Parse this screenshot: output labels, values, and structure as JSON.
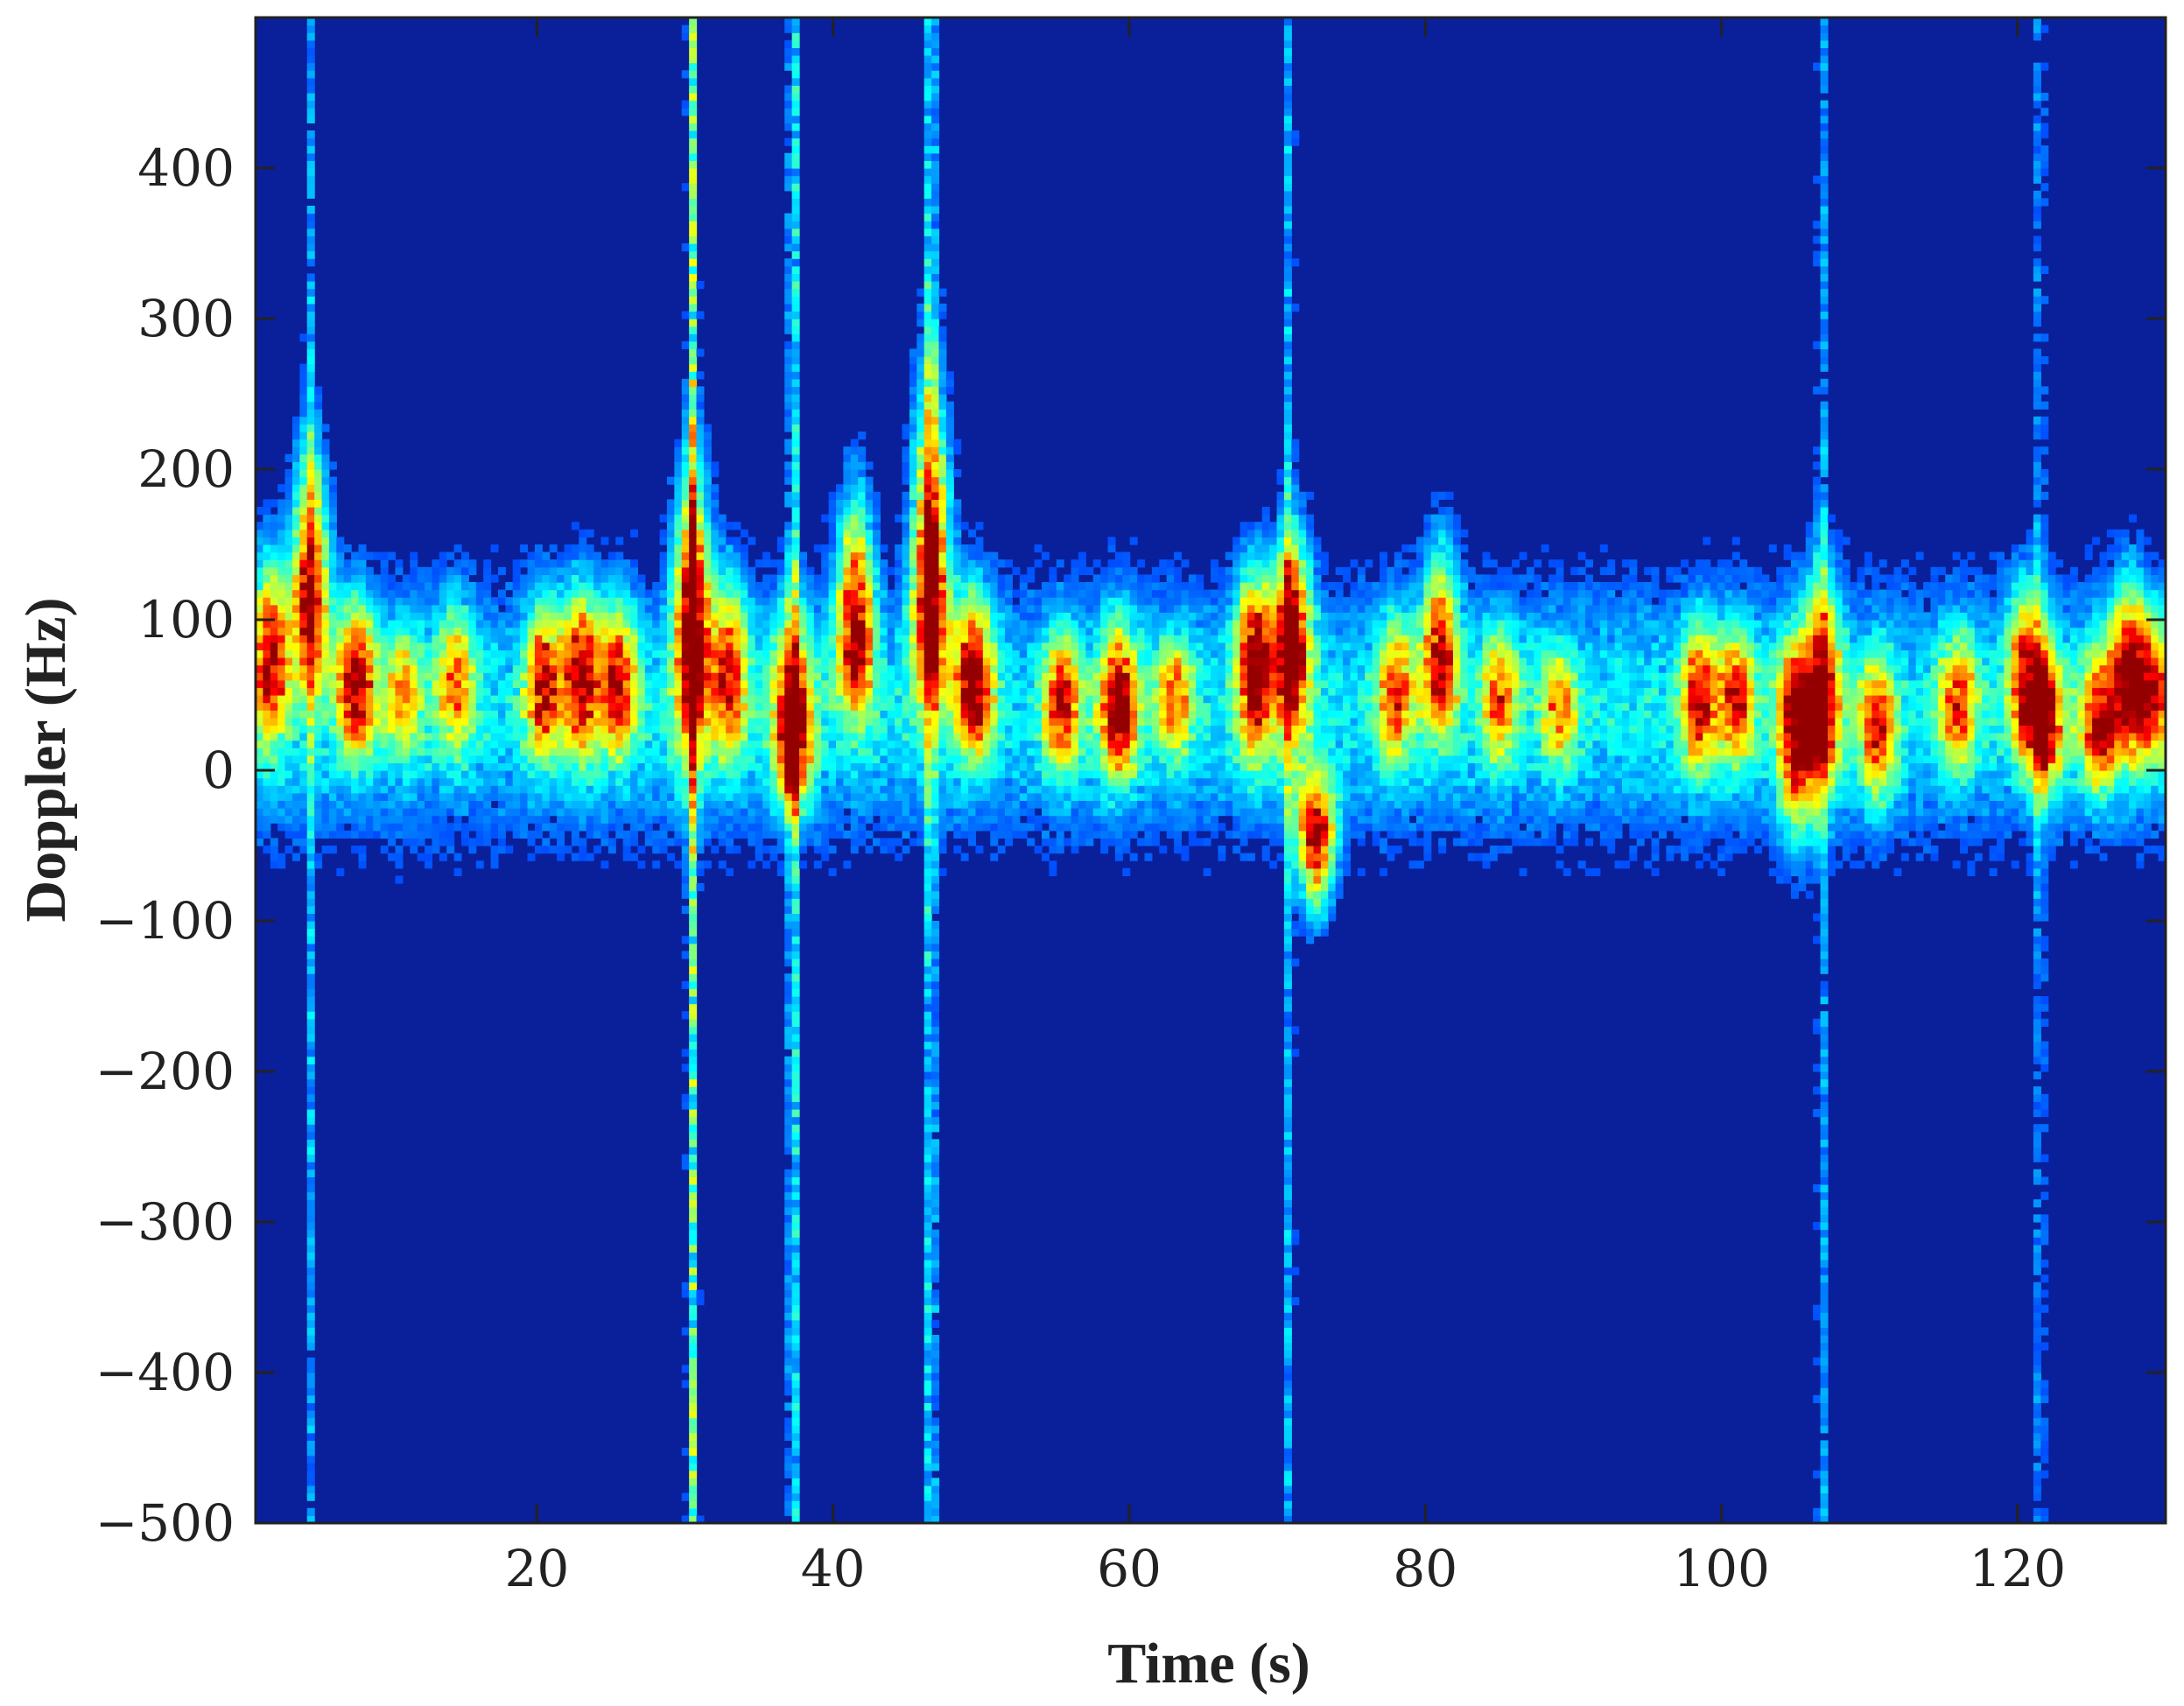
{
  "chart_data": {
    "type": "heatmap",
    "subtype": "spectrogram (micro-Doppler)",
    "title": "",
    "xlabel": "Time (s)",
    "ylabel": "Doppler (Hz)",
    "xlim": [
      1,
      130
    ],
    "ylim": [
      -500,
      500
    ],
    "xticks": [
      20,
      40,
      60,
      80,
      100,
      120
    ],
    "yticks": [
      -500,
      -400,
      -300,
      -200,
      -100,
      0,
      100,
      200,
      300,
      400
    ],
    "xtick_labels": [
      "20",
      "40",
      "60",
      "80",
      "100",
      "120"
    ],
    "ytick_labels": [
      "−500",
      "−400",
      "−300",
      "−200",
      "−100",
      "0",
      "100",
      "200",
      "300",
      "400"
    ],
    "colormap": "jet",
    "background_color": "#0a1f9a",
    "grid": false,
    "colorbar": false,
    "dominant_band_hz": [
      -50,
      130
    ],
    "bursts": [
      {
        "t": 2.0,
        "f": 70,
        "spread_up": 110,
        "spread_down": 80,
        "peak": 0.85
      },
      {
        "t": 4.7,
        "f": 110,
        "spread_up": 160,
        "spread_down": 80,
        "peak": 0.9
      },
      {
        "t": 7.8,
        "f": 55,
        "spread_up": 90,
        "spread_down": 70,
        "peak": 0.85
      },
      {
        "t": 11.0,
        "f": 50,
        "spread_up": 70,
        "spread_down": 60,
        "peak": 0.55
      },
      {
        "t": 14.5,
        "f": 60,
        "spread_up": 80,
        "spread_down": 70,
        "peak": 0.6
      },
      {
        "t": 20.5,
        "f": 55,
        "spread_up": 90,
        "spread_down": 70,
        "peak": 0.75
      },
      {
        "t": 23.0,
        "f": 65,
        "spread_up": 90,
        "spread_down": 90,
        "peak": 0.8
      },
      {
        "t": 25.5,
        "f": 55,
        "spread_up": 90,
        "spread_down": 70,
        "peak": 0.75
      },
      {
        "t": 30.5,
        "f": 90,
        "spread_up": 170,
        "spread_down": 120,
        "peak": 0.97
      },
      {
        "t": 33.0,
        "f": 60,
        "spread_up": 110,
        "spread_down": 80,
        "peak": 0.7
      },
      {
        "t": 37.3,
        "f": 20,
        "spread_up": 120,
        "spread_down": 70,
        "peak": 1.0
      },
      {
        "t": 41.5,
        "f": 90,
        "spread_up": 140,
        "spread_down": 80,
        "peak": 0.92
      },
      {
        "t": 46.6,
        "f": 110,
        "spread_up": 230,
        "spread_down": 100,
        "peak": 1.0
      },
      {
        "t": 49.5,
        "f": 55,
        "spread_up": 100,
        "spread_down": 70,
        "peak": 0.9
      },
      {
        "t": 55.5,
        "f": 45,
        "spread_up": 70,
        "spread_down": 70,
        "peak": 0.75
      },
      {
        "t": 59.3,
        "f": 40,
        "spread_up": 90,
        "spread_down": 70,
        "peak": 0.9
      },
      {
        "t": 63.0,
        "f": 50,
        "spread_up": 60,
        "spread_down": 60,
        "peak": 0.6
      },
      {
        "t": 68.5,
        "f": 70,
        "spread_up": 100,
        "spread_down": 90,
        "peak": 0.9
      },
      {
        "t": 71.0,
        "f": 80,
        "spread_up": 120,
        "spread_down": 90,
        "peak": 0.97
      },
      {
        "t": 72.6,
        "f": -40,
        "spread_up": 60,
        "spread_down": 80,
        "peak": 0.95
      },
      {
        "t": 78.0,
        "f": 50,
        "spread_up": 80,
        "spread_down": 70,
        "peak": 0.65
      },
      {
        "t": 81.0,
        "f": 70,
        "spread_up": 120,
        "spread_down": 70,
        "peak": 0.8
      },
      {
        "t": 85.0,
        "f": 50,
        "spread_up": 70,
        "spread_down": 70,
        "peak": 0.6
      },
      {
        "t": 89.0,
        "f": 40,
        "spread_up": 60,
        "spread_down": 60,
        "peak": 0.55
      },
      {
        "t": 98.5,
        "f": 45,
        "spread_up": 80,
        "spread_down": 70,
        "peak": 0.75
      },
      {
        "t": 101.0,
        "f": 50,
        "spread_up": 70,
        "spread_down": 70,
        "peak": 0.7
      },
      {
        "t": 105.0,
        "f": 30,
        "spread_up": 90,
        "spread_down": 110,
        "peak": 0.85
      },
      {
        "t": 106.8,
        "f": 40,
        "spread_up": 130,
        "spread_down": 90,
        "peak": 0.85
      },
      {
        "t": 110.5,
        "f": 30,
        "spread_up": 70,
        "spread_down": 80,
        "peak": 0.7
      },
      {
        "t": 116.0,
        "f": 45,
        "spread_up": 70,
        "spread_down": 70,
        "peak": 0.65
      },
      {
        "t": 120.5,
        "f": 60,
        "spread_up": 100,
        "spread_down": 70,
        "peak": 0.7
      },
      {
        "t": 121.8,
        "f": 30,
        "spread_up": 80,
        "spread_down": 70,
        "peak": 0.9
      },
      {
        "t": 125.5,
        "f": 30,
        "spread_up": 80,
        "spread_down": 70,
        "peak": 0.75
      },
      {
        "t": 127.5,
        "f": 60,
        "spread_up": 100,
        "spread_down": 80,
        "peak": 0.85
      },
      {
        "t": 129.2,
        "f": 50,
        "spread_up": 80,
        "spread_down": 70,
        "peak": 0.7
      }
    ],
    "vertical_streaks": [
      {
        "t": 30.5,
        "intensity": 0.45
      },
      {
        "t": 37.3,
        "intensity": 0.35
      },
      {
        "t": 46.6,
        "intensity": 0.35
      },
      {
        "t": 70.8,
        "intensity": 0.22
      },
      {
        "t": 4.7,
        "intensity": 0.2
      },
      {
        "t": 106.8,
        "intensity": 0.2
      },
      {
        "t": 121.5,
        "intensity": 0.18
      }
    ]
  }
}
